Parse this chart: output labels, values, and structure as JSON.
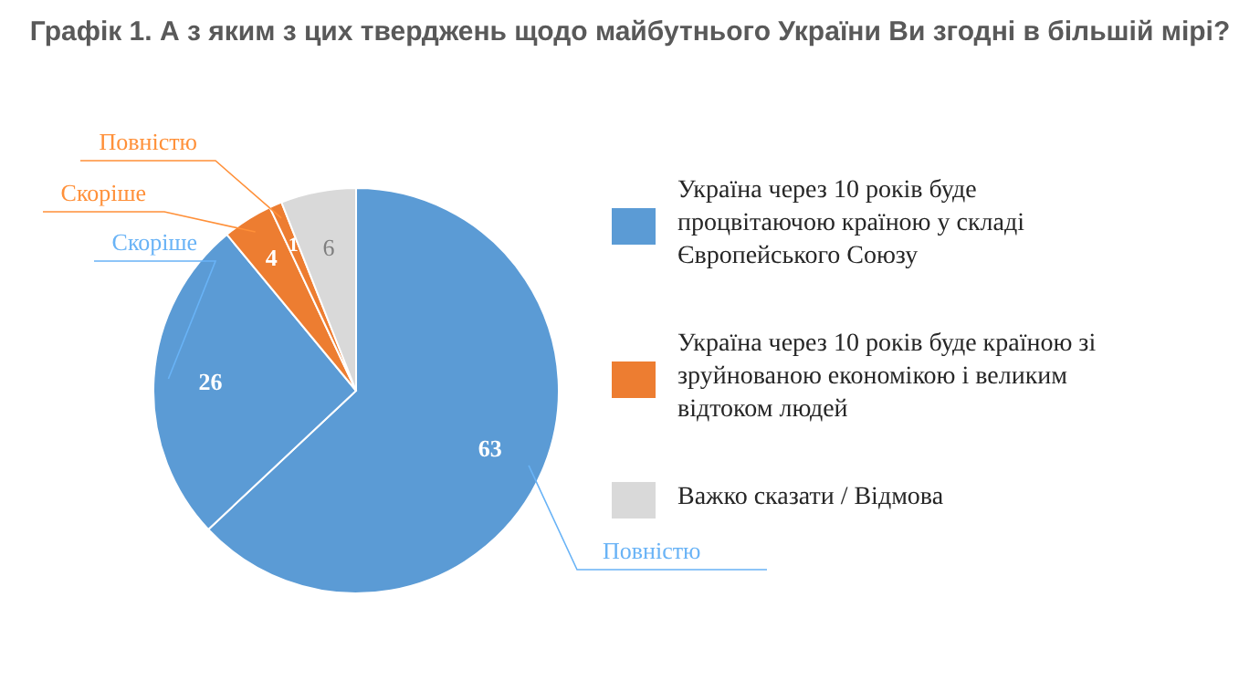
{
  "chart_data": {
    "type": "pie",
    "title": "Графік 1. А з яким з цих тверджень щодо майбутнього України Ви згодні в більшій мірі?",
    "categories": [
      "Повністю",
      "Скоріше",
      "Скоріше",
      "Повністю",
      null
    ],
    "values": [
      63,
      26,
      4,
      1,
      6
    ],
    "colors": [
      "#5b9bd5",
      "#5b9bd5",
      "#ed7d31",
      "#ed7d31",
      "#d9d9d9"
    ],
    "annotations": [
      "Україна через 10 років буде процвітаючою країною у складі Європейського Союзу",
      "Україна через 10 років буде країною зі зруйнованою економікою і великим відтоком людей",
      "Важко сказати / Відмова"
    ],
    "data_labels": true
  }
}
